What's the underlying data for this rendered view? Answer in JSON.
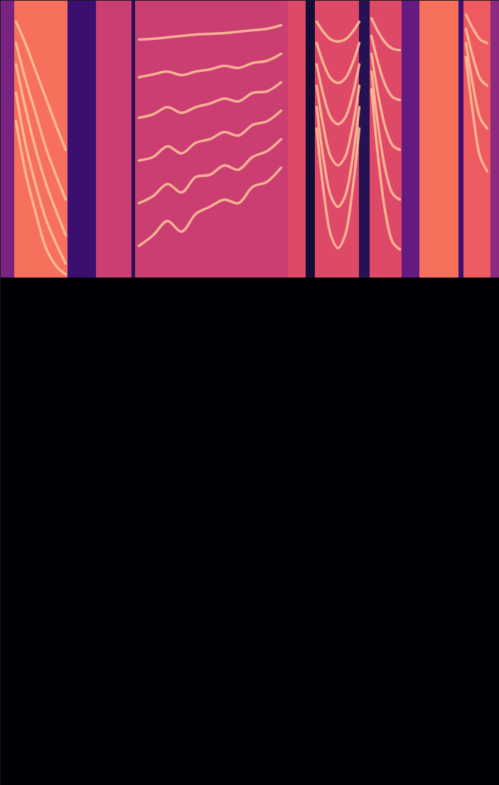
{
  "chart_data": {
    "type": "heatmap",
    "color": "magma",
    "tick_labels": false,
    "xlim": [
      0,
      702
    ],
    "ylim": [
      1103,
      0
    ],
    "zlim": [
      0,
      1
    ],
    "cells": [
      {
        "x0": 0,
        "x1": 702,
        "y0": 390,
        "y1": 1103,
        "value": 0
      },
      {
        "x0": 0,
        "x1": 20,
        "y0": 0,
        "y1": 390,
        "value": 0.35
      },
      {
        "x0": 20,
        "x1": 95,
        "y0": 0,
        "y1": 390,
        "value": 0.7
      },
      {
        "x0": 95,
        "x1": 135,
        "y0": 0,
        "y1": 390,
        "value": 0.2
      },
      {
        "x0": 135,
        "x1": 185,
        "y0": 0,
        "y1": 390,
        "value": 0.55
      },
      {
        "x0": 185,
        "x1": 190,
        "y0": 0,
        "y1": 390,
        "value": 0.15
      },
      {
        "x0": 190,
        "x1": 405,
        "y0": 0,
        "y1": 390,
        "value": 0.55
      },
      {
        "x0": 405,
        "x1": 430,
        "y0": 0,
        "y1": 390,
        "value": 0.6
      },
      {
        "x0": 430,
        "x1": 443,
        "y0": 0,
        "y1": 390,
        "value": 0.1
      },
      {
        "x0": 443,
        "x1": 505,
        "y0": 0,
        "y1": 390,
        "value": 0.6
      },
      {
        "x0": 505,
        "x1": 520,
        "y0": 0,
        "y1": 390,
        "value": 0.15
      },
      {
        "x0": 520,
        "x1": 565,
        "y0": 0,
        "y1": 390,
        "value": 0.6
      },
      {
        "x0": 565,
        "x1": 590,
        "y0": 0,
        "y1": 390,
        "value": 0.3
      },
      {
        "x0": 590,
        "x1": 645,
        "y0": 0,
        "y1": 390,
        "value": 0.7
      },
      {
        "x0": 645,
        "x1": 652,
        "y0": 0,
        "y1": 390,
        "value": 0.2
      },
      {
        "x0": 652,
        "x1": 690,
        "y0": 0,
        "y1": 390,
        "value": 0.65
      },
      {
        "x0": 690,
        "x1": 702,
        "y0": 0,
        "y1": 390,
        "value": 0.4
      }
    ],
    "series": [
      {
        "color": "#ffc79a",
        "x": [
          22,
          35,
          50,
          65,
          80,
          92
        ],
        "values": [
          30,
          60,
          100,
          140,
          180,
          210
        ]
      },
      {
        "color": "#ffc79a",
        "x": [
          22,
          35,
          50,
          65,
          80,
          92
        ],
        "values": [
          60,
          110,
          160,
          210,
          250,
          280
        ]
      },
      {
        "color": "#ffc79a",
        "x": [
          22,
          35,
          50,
          65,
          80,
          92
        ],
        "values": [
          90,
          150,
          210,
          260,
          300,
          330
        ]
      },
      {
        "color": "#ffc79a",
        "x": [
          22,
          35,
          50,
          65,
          80,
          92
        ],
        "values": [
          130,
          200,
          260,
          310,
          345,
          370
        ]
      },
      {
        "color": "#ffc79a",
        "x": [
          22,
          35,
          50,
          65,
          80,
          92
        ],
        "values": [
          170,
          240,
          300,
          350,
          375,
          385
        ]
      },
      {
        "color": "#ffc79a",
        "x": [
          195,
          215,
          235,
          255,
          275,
          295,
          315,
          335,
          355,
          375,
          395
        ],
        "values": [
          55,
          54,
          52,
          50,
          48,
          47,
          46,
          44,
          42,
          40,
          35
        ]
      },
      {
        "color": "#ffc79a",
        "x": [
          195,
          215,
          235,
          255,
          275,
          295,
          315,
          335,
          355,
          375,
          395
        ],
        "values": [
          108,
          104,
          100,
          105,
          100,
          97,
          92,
          95,
          88,
          85,
          75
        ]
      },
      {
        "color": "#ffc79a",
        "x": [
          195,
          215,
          235,
          255,
          275,
          295,
          315,
          335,
          355,
          375,
          395
        ],
        "values": [
          165,
          160,
          150,
          158,
          150,
          145,
          138,
          142,
          130,
          128,
          115
        ]
      },
      {
        "color": "#ffc79a",
        "x": [
          195,
          215,
          235,
          255,
          275,
          295,
          315,
          335,
          355,
          375,
          395
        ],
        "values": [
          225,
          220,
          205,
          215,
          200,
          195,
          185,
          190,
          175,
          170,
          155
        ]
      },
      {
        "color": "#ffc79a",
        "x": [
          195,
          215,
          235,
          255,
          275,
          295,
          315,
          335,
          355,
          375,
          395
        ],
        "values": [
          285,
          275,
          258,
          270,
          248,
          245,
          232,
          238,
          220,
          212,
          195
        ]
      },
      {
        "color": "#ffc79a",
        "x": [
          195,
          215,
          235,
          255,
          275,
          295,
          315,
          335,
          355,
          375,
          395
        ],
        "values": [
          345,
          330,
          310,
          325,
          300,
          290,
          280,
          285,
          262,
          255,
          235
        ]
      },
      {
        "color": "#ffc79a",
        "x": [
          445,
          455,
          465,
          475,
          485,
          495,
          505
        ],
        "values": [
          30,
          45,
          55,
          58,
          55,
          45,
          30
        ]
      },
      {
        "color": "#ffc79a",
        "x": [
          445,
          455,
          465,
          475,
          485,
          495,
          505
        ],
        "values": [
          60,
          90,
          110,
          116,
          110,
          90,
          60
        ]
      },
      {
        "color": "#ffc79a",
        "x": [
          445,
          455,
          465,
          475,
          485,
          495,
          505
        ],
        "values": [
          90,
          135,
          165,
          174,
          165,
          135,
          90
        ]
      },
      {
        "color": "#ffc79a",
        "x": [
          445,
          455,
          465,
          475,
          485,
          495,
          505
        ],
        "values": [
          120,
          180,
          220,
          232,
          220,
          180,
          120
        ]
      },
      {
        "color": "#ffc79a",
        "x": [
          445,
          455,
          465,
          475,
          485,
          495,
          505
        ],
        "values": [
          150,
          225,
          275,
          290,
          275,
          225,
          150
        ]
      },
      {
        "color": "#ffc79a",
        "x": [
          445,
          455,
          465,
          475,
          485,
          495,
          505
        ],
        "values": [
          180,
          270,
          330,
          348,
          330,
          270,
          180
        ]
      },
      {
        "color": "#ffc79a",
        "x": [
          522,
          532,
          542,
          552,
          562
        ],
        "values": [
          25,
          45,
          60,
          68,
          70
        ]
      },
      {
        "color": "#ffc79a",
        "x": [
          522,
          532,
          542,
          552,
          562
        ],
        "values": [
          50,
          90,
          120,
          136,
          140
        ]
      },
      {
        "color": "#ffc79a",
        "x": [
          522,
          532,
          542,
          552,
          562
        ],
        "values": [
          75,
          135,
          180,
          204,
          210
        ]
      },
      {
        "color": "#ffc79a",
        "x": [
          522,
          532,
          542,
          552,
          562
        ],
        "values": [
          100,
          180,
          240,
          272,
          280
        ]
      },
      {
        "color": "#ffc79a",
        "x": [
          522,
          532,
          542,
          552,
          562
        ],
        "values": [
          125,
          225,
          300,
          340,
          350
        ]
      },
      {
        "color": "#ffc79a",
        "x": [
          655,
          665,
          675,
          685
        ],
        "values": [
          20,
          40,
          55,
          60
        ]
      },
      {
        "color": "#ffc79a",
        "x": [
          655,
          665,
          675,
          685
        ],
        "values": [
          40,
          80,
          110,
          120
        ]
      },
      {
        "color": "#ffc79a",
        "x": [
          655,
          665,
          675,
          685
        ],
        "values": [
          60,
          120,
          165,
          180
        ]
      },
      {
        "color": "#ffc79a",
        "x": [
          655,
          665,
          675,
          685
        ],
        "values": [
          80,
          160,
          220,
          240
        ]
      }
    ]
  }
}
